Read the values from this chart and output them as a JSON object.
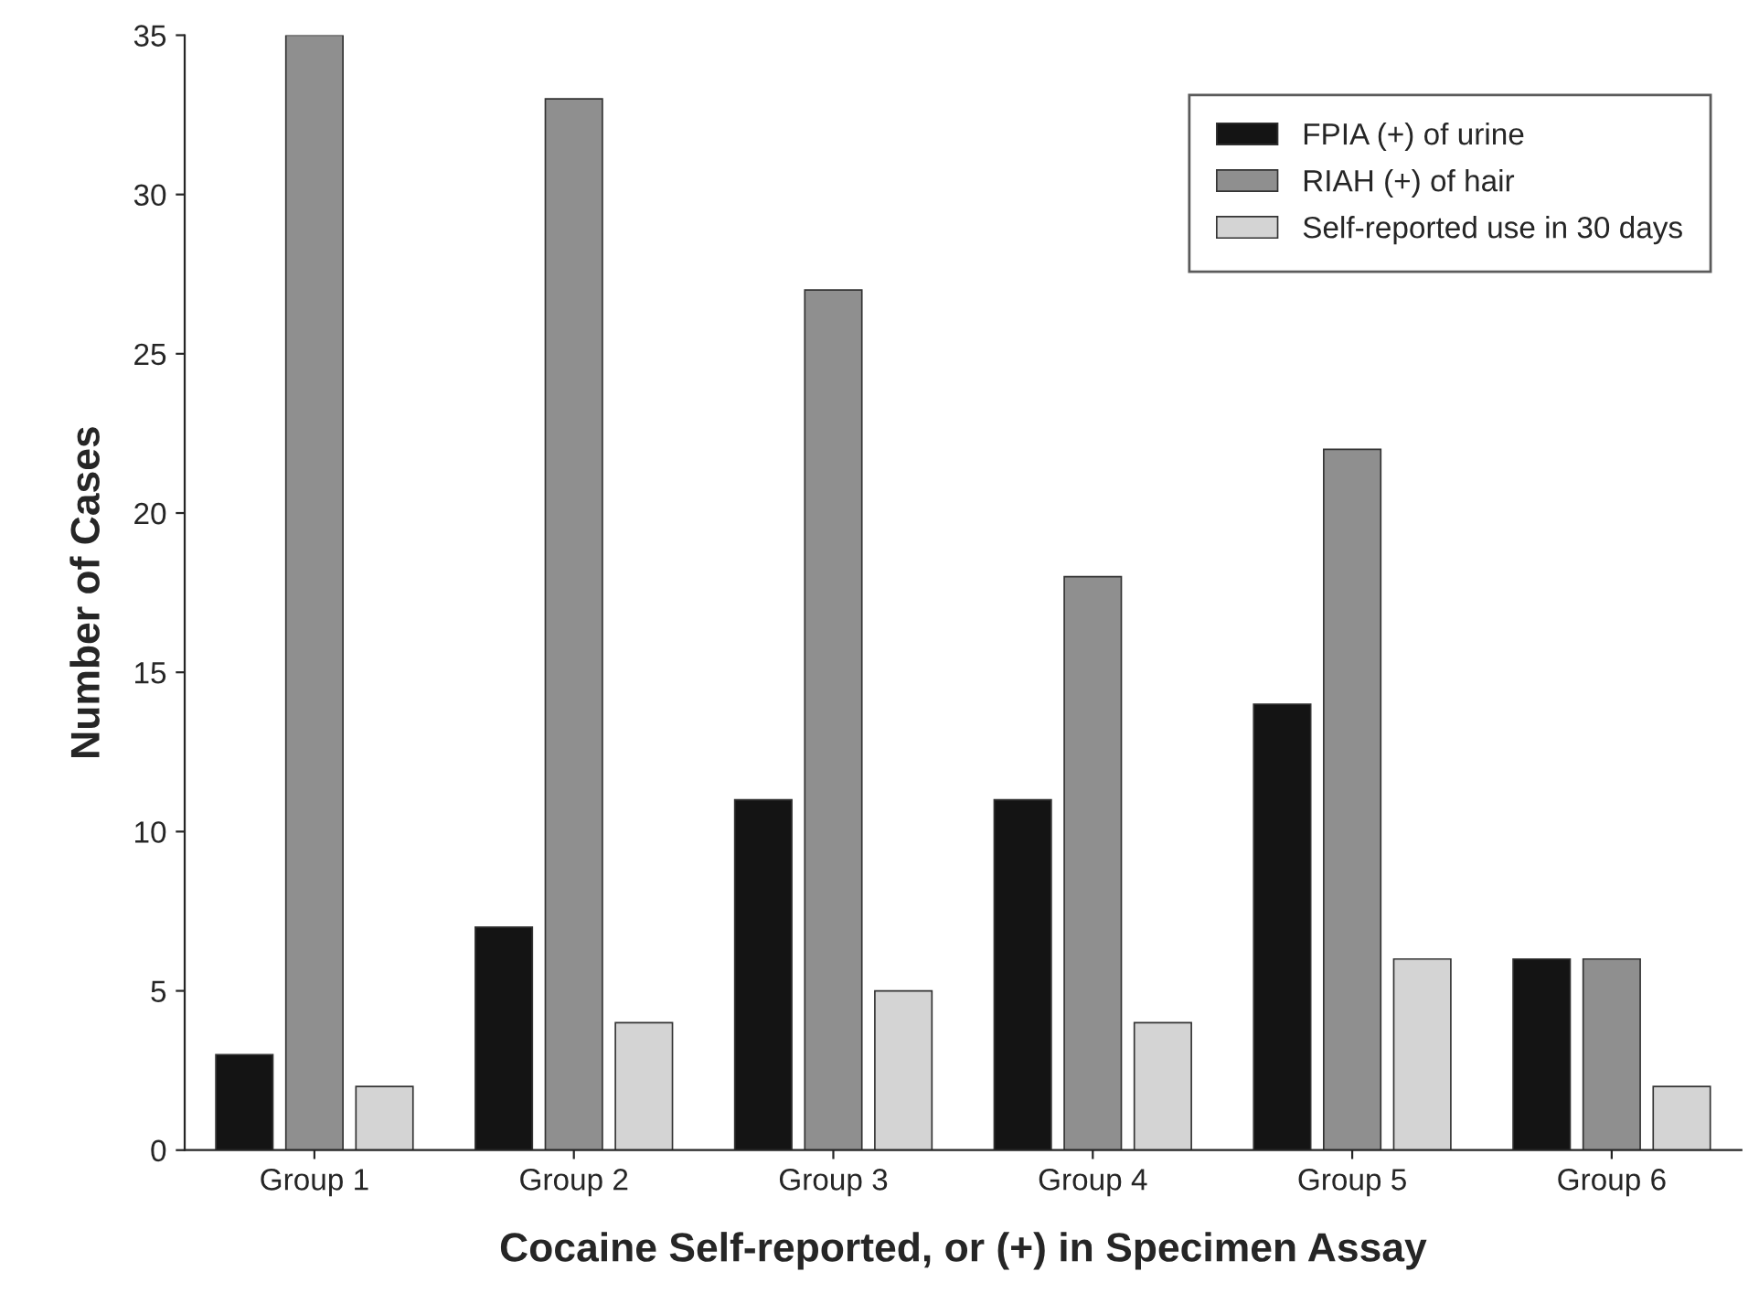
{
  "chart_data": {
    "type": "bar",
    "xlabel": "Cocaine Self-reported, or (+) in Specimen Assay",
    "ylabel": "Number of Cases",
    "categories": [
      "Group 1",
      "Group 2",
      "Group 3",
      "Group 4",
      "Group 5",
      "Group 6"
    ],
    "series": [
      {
        "name": "FPIA (+) of urine",
        "color": "#141414",
        "values": [
          3,
          7,
          11,
          11,
          14,
          6
        ]
      },
      {
        "name": "RIAH (+) of hair",
        "color": "#8f8f8f",
        "values": [
          35,
          33,
          27,
          18,
          22,
          6
        ]
      },
      {
        "name": "Self-reported use in 30 days",
        "color": "#d4d4d4",
        "values": [
          2,
          4,
          5,
          4,
          6,
          2
        ]
      }
    ],
    "ylim": [
      0,
      35
    ],
    "yticks": [
      0,
      5,
      10,
      15,
      20,
      25,
      30,
      35
    ],
    "grid": false,
    "legend": "top right"
  }
}
